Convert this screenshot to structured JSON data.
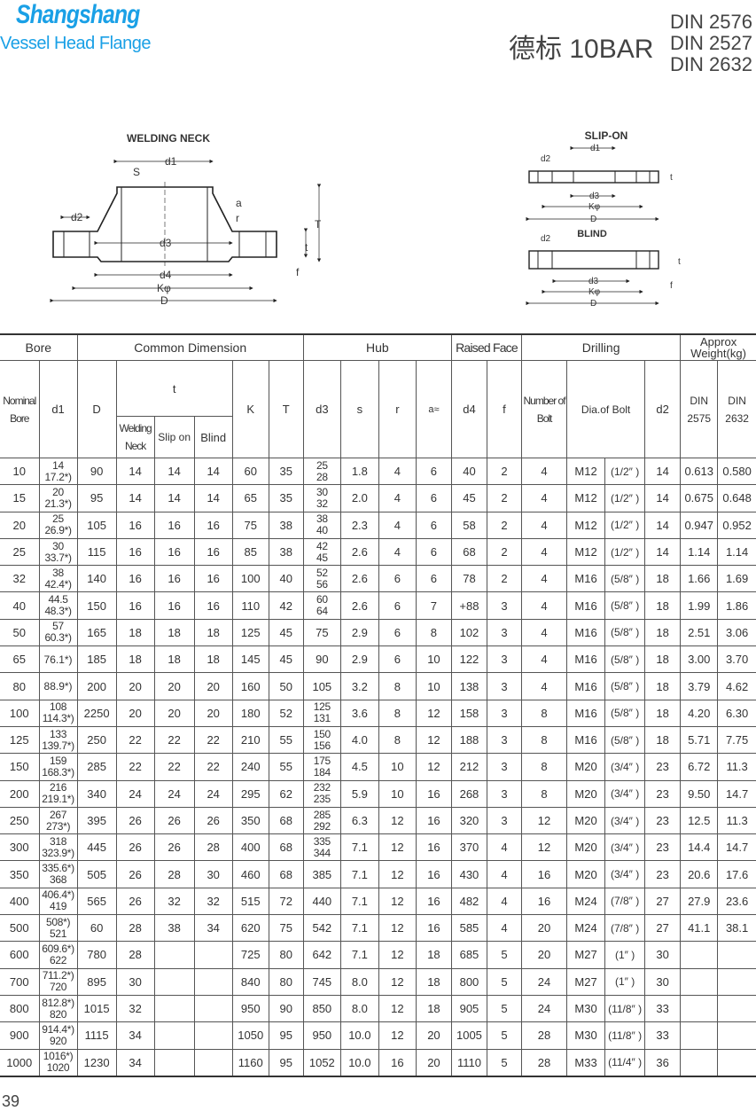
{
  "header": {
    "brand": "Shangshang",
    "subtitle": "Vessel Head Flange",
    "title": "德标 10BAR",
    "standards": [
      "DIN 2576",
      "DIN 2527",
      "DIN 2632"
    ],
    "brand_color": "#1aa0e6"
  },
  "drawings": {
    "welding_neck": {
      "title": "WELDING NECK",
      "labels": {
        "d1": "d1",
        "s": "S",
        "a": "a",
        "r": "r",
        "t_big": "T",
        "t": "t",
        "f": "f",
        "d2": "d2",
        "d3": "d3",
        "d4": "d4",
        "k": "Kφ",
        "d": "D"
      }
    },
    "slip_on": {
      "title": "SLIP-ON",
      "labels": {
        "d1": "d1",
        "d2": "d2",
        "t": "t",
        "d3": "d3",
        "k": "Kφ",
        "d": "D"
      }
    },
    "blind": {
      "title": "BLIND",
      "labels": {
        "d2": "d2",
        "t": "t",
        "f": "f",
        "d3": "d3",
        "k": "Kφ",
        "d": "D"
      }
    }
  },
  "table": {
    "groups": {
      "bore": "Bore",
      "common": "Common Dimension",
      "hub": "Hub",
      "raised": "Raised Face",
      "drilling": "Drilling",
      "weight": "Approx Weight(kg)"
    },
    "columns": {
      "nominal": "Nominal Bore",
      "d1": "d1",
      "D": "D",
      "t": "t",
      "welding": "Welding Neck",
      "slip": "Slip on",
      "blind": "Blind",
      "K": "K",
      "T": "T",
      "d3": "d3",
      "s": "s",
      "r": "r",
      "a": "a≈",
      "d4": "d4",
      "f": "f",
      "number": "Number of Bolt",
      "dia": "Dia.of Bolt",
      "d2": "d2",
      "din2575": "DIN 2575",
      "din2632": "DIN 2632"
    },
    "rows": [
      {
        "nb": "10",
        "d1": "14\n17.2*)",
        "D": "90",
        "tw": "14",
        "ts": "14",
        "tb": "14",
        "K": "60",
        "T": "35",
        "d3": "25\n28",
        "s": "1.8",
        "r": "4",
        "a": "6",
        "d4": "40",
        "f": "2",
        "n": "4",
        "bolt": "M12",
        "inch": "(1/2″ )",
        "d2": "14",
        "w1": "0.613",
        "w2": "0.580"
      },
      {
        "nb": "15",
        "d1": "20\n21.3*)",
        "D": "95",
        "tw": "14",
        "ts": "14",
        "tb": "14",
        "K": "65",
        "T": "35",
        "d3": "30\n32",
        "s": "2.0",
        "r": "4",
        "a": "6",
        "d4": "45",
        "f": "2",
        "n": "4",
        "bolt": "M12",
        "inch": "(1/2″ )",
        "d2": "14",
        "w1": "0.675",
        "w2": "0.648"
      },
      {
        "nb": "20",
        "d1": "25\n26.9*)",
        "D": "105",
        "tw": "16",
        "ts": "16",
        "tb": "16",
        "K": "75",
        "T": "38",
        "d3": "38\n40",
        "s": "2.3",
        "r": "4",
        "a": "6",
        "d4": "58",
        "f": "2",
        "n": "4",
        "bolt": "M12",
        "inch": "(1/2″ )",
        "d2": "14",
        "w1": "0.947",
        "w2": "0.952"
      },
      {
        "nb": "25",
        "d1": "30\n33.7*)",
        "D": "115",
        "tw": "16",
        "ts": "16",
        "tb": "16",
        "K": "85",
        "T": "38",
        "d3": "42\n45",
        "s": "2.6",
        "r": "4",
        "a": "6",
        "d4": "68",
        "f": "2",
        "n": "4",
        "bolt": "M12",
        "inch": "(1/2″ )",
        "d2": "14",
        "w1": "1.14",
        "w2": "1.14"
      },
      {
        "nb": "32",
        "d1": "38\n42.4*)",
        "D": "140",
        "tw": "16",
        "ts": "16",
        "tb": "16",
        "K": "100",
        "T": "40",
        "d3": "52\n56",
        "s": "2.6",
        "r": "6",
        "a": "6",
        "d4": "78",
        "f": "2",
        "n": "4",
        "bolt": "M16",
        "inch": "(5/8″ )",
        "d2": "18",
        "w1": "1.66",
        "w2": "1.69"
      },
      {
        "nb": "40",
        "d1": "44.5\n48.3*)",
        "D": "150",
        "tw": "16",
        "ts": "16",
        "tb": "16",
        "K": "110",
        "T": "42",
        "d3": "60\n64",
        "s": "2.6",
        "r": "6",
        "a": "7",
        "d4": "+88",
        "f": "3",
        "n": "4",
        "bolt": "M16",
        "inch": "(5/8″ )",
        "d2": "18",
        "w1": "1.99",
        "w2": "1.86"
      },
      {
        "nb": "50",
        "d1": "57\n60.3*)",
        "D": "165",
        "tw": "18",
        "ts": "18",
        "tb": "18",
        "K": "125",
        "T": "45",
        "d3": "75",
        "s": "2.9",
        "r": "6",
        "a": "8",
        "d4": "102",
        "f": "3",
        "n": "4",
        "bolt": "M16",
        "inch": "(5/8″ )",
        "d2": "18",
        "w1": "2.51",
        "w2": "3.06"
      },
      {
        "nb": "65",
        "d1": "76.1*)",
        "D": "185",
        "tw": "18",
        "ts": "18",
        "tb": "18",
        "K": "145",
        "T": "45",
        "d3": "90",
        "s": "2.9",
        "r": "6",
        "a": "10",
        "d4": "122",
        "f": "3",
        "n": "4",
        "bolt": "M16",
        "inch": "(5/8″ )",
        "d2": "18",
        "w1": "3.00",
        "w2": "3.70"
      },
      {
        "nb": "80",
        "d1": "88.9*)",
        "D": "200",
        "tw": "20",
        "ts": "20",
        "tb": "20",
        "K": "160",
        "T": "50",
        "d3": "105",
        "s": "3.2",
        "r": "8",
        "a": "10",
        "d4": "138",
        "f": "3",
        "n": "4",
        "bolt": "M16",
        "inch": "(5/8″ )",
        "d2": "18",
        "w1": "3.79",
        "w2": "4.62"
      },
      {
        "nb": "100",
        "d1": "108\n114.3*)",
        "D": "2250",
        "tw": "20",
        "ts": "20",
        "tb": "20",
        "K": "180",
        "T": "52",
        "d3": "125\n131",
        "s": "3.6",
        "r": "8",
        "a": "12",
        "d4": "158",
        "f": "3",
        "n": "8",
        "bolt": "M16",
        "inch": "(5/8″ )",
        "d2": "18",
        "w1": "4.20",
        "w2": "6.30"
      },
      {
        "nb": "125",
        "d1": "133\n139.7*)",
        "D": "250",
        "tw": "22",
        "ts": "22",
        "tb": "22",
        "K": "210",
        "T": "55",
        "d3": "150\n156",
        "s": "4.0",
        "r": "8",
        "a": "12",
        "d4": "188",
        "f": "3",
        "n": "8",
        "bolt": "M16",
        "inch": "(5/8″ )",
        "d2": "18",
        "w1": "5.71",
        "w2": "7.75"
      },
      {
        "nb": "150",
        "d1": "159\n168.3*)",
        "D": "285",
        "tw": "22",
        "ts": "22",
        "tb": "22",
        "K": "240",
        "T": "55",
        "d3": "175\n184",
        "s": "4.5",
        "r": "10",
        "a": "12",
        "d4": "212",
        "f": "3",
        "n": "8",
        "bolt": "M20",
        "inch": "(3/4″ )",
        "d2": "23",
        "w1": "6.72",
        "w2": "11.3"
      },
      {
        "nb": "200",
        "d1": "216\n219.1*)",
        "D": "340",
        "tw": "24",
        "ts": "24",
        "tb": "24",
        "K": "295",
        "T": "62",
        "d3": "232\n235",
        "s": "5.9",
        "r": "10",
        "a": "16",
        "d4": "268",
        "f": "3",
        "n": "8",
        "bolt": "M20",
        "inch": "(3/4″ )",
        "d2": "23",
        "w1": "9.50",
        "w2": "14.7"
      },
      {
        "nb": "250",
        "d1": "267\n273*)",
        "D": "395",
        "tw": "26",
        "ts": "26",
        "tb": "26",
        "K": "350",
        "T": "68",
        "d3": "285\n292",
        "s": "6.3",
        "r": "12",
        "a": "16",
        "d4": "320",
        "f": "3",
        "n": "12",
        "bolt": "M20",
        "inch": "(3/4″ )",
        "d2": "23",
        "w1": "12.5",
        "w2": "11.3"
      },
      {
        "nb": "300",
        "d1": "318\n323.9*)",
        "D": "445",
        "tw": "26",
        "ts": "26",
        "tb": "28",
        "K": "400",
        "T": "68",
        "d3": "335\n344",
        "s": "7.1",
        "r": "12",
        "a": "16",
        "d4": "370",
        "f": "4",
        "n": "12",
        "bolt": "M20",
        "inch": "(3/4″ )",
        "d2": "23",
        "w1": "14.4",
        "w2": "14.7"
      },
      {
        "nb": "350",
        "d1": "335.6*)\n368",
        "D": "505",
        "tw": "26",
        "ts": "28",
        "tb": "30",
        "K": "460",
        "T": "68",
        "d3": "385",
        "s": "7.1",
        "r": "12",
        "a": "16",
        "d4": "430",
        "f": "4",
        "n": "16",
        "bolt": "M20",
        "inch": "(3/4″ )",
        "d2": "23",
        "w1": "20.6",
        "w2": "17.6"
      },
      {
        "nb": "400",
        "d1": "406.4*)\n419",
        "D": "565",
        "tw": "26",
        "ts": "32",
        "tb": "32",
        "K": "515",
        "T": "72",
        "d3": "440",
        "s": "7.1",
        "r": "12",
        "a": "16",
        "d4": "482",
        "f": "4",
        "n": "16",
        "bolt": "M24",
        "inch": "(7/8″ )",
        "d2": "27",
        "w1": "27.9",
        "w2": "23.6"
      },
      {
        "nb": "500",
        "d1": "508*)\n521",
        "D": "60",
        "tw": "28",
        "ts": "38",
        "tb": "34",
        "K": "620",
        "T": "75",
        "d3": "542",
        "s": "7.1",
        "r": "12",
        "a": "16",
        "d4": "585",
        "f": "4",
        "n": "20",
        "bolt": "M24",
        "inch": "(7/8″ )",
        "d2": "27",
        "w1": "41.1",
        "w2": "38.1"
      },
      {
        "nb": "600",
        "d1": "609.6*)\n622",
        "D": "780",
        "tw": "28",
        "ts": "",
        "tb": "",
        "K": "725",
        "T": "80",
        "d3": "642",
        "s": "7.1",
        "r": "12",
        "a": "18",
        "d4": "685",
        "f": "5",
        "n": "20",
        "bolt": "M27",
        "inch": "(1″ )",
        "d2": "30",
        "w1": "",
        "w2": ""
      },
      {
        "nb": "700",
        "d1": "711.2*)\n720",
        "D": "895",
        "tw": "30",
        "ts": "",
        "tb": "",
        "K": "840",
        "T": "80",
        "d3": "745",
        "s": "8.0",
        "r": "12",
        "a": "18",
        "d4": "800",
        "f": "5",
        "n": "24",
        "bolt": "M27",
        "inch": "(1″ )",
        "d2": "30",
        "w1": "",
        "w2": ""
      },
      {
        "nb": "800",
        "d1": "812.8*)\n820",
        "D": "1015",
        "tw": "32",
        "ts": "",
        "tb": "",
        "K": "950",
        "T": "90",
        "d3": "850",
        "s": "8.0",
        "r": "12",
        "a": "18",
        "d4": "905",
        "f": "5",
        "n": "24",
        "bolt": "M30",
        "inch": "(11/8″ )",
        "d2": "33",
        "w1": "",
        "w2": ""
      },
      {
        "nb": "900",
        "d1": "914.4*)\n920",
        "D": "1115",
        "tw": "34",
        "ts": "",
        "tb": "",
        "K": "1050",
        "T": "95",
        "d3": "950",
        "s": "10.0",
        "r": "12",
        "a": "20",
        "d4": "1005",
        "f": "5",
        "n": "28",
        "bolt": "M30",
        "inch": "(11/8″ )",
        "d2": "33",
        "w1": "",
        "w2": ""
      },
      {
        "nb": "1000",
        "d1": "1016*)\n1020",
        "D": "1230",
        "tw": "34",
        "ts": "",
        "tb": "",
        "K": "1160",
        "T": "95",
        "d3": "1052",
        "s": "10.0",
        "r": "16",
        "a": "20",
        "d4": "1110",
        "f": "5",
        "n": "28",
        "bolt": "M33",
        "inch": "(11/4″ )",
        "d2": "36",
        "w1": "",
        "w2": ""
      }
    ]
  },
  "page_number": "39"
}
